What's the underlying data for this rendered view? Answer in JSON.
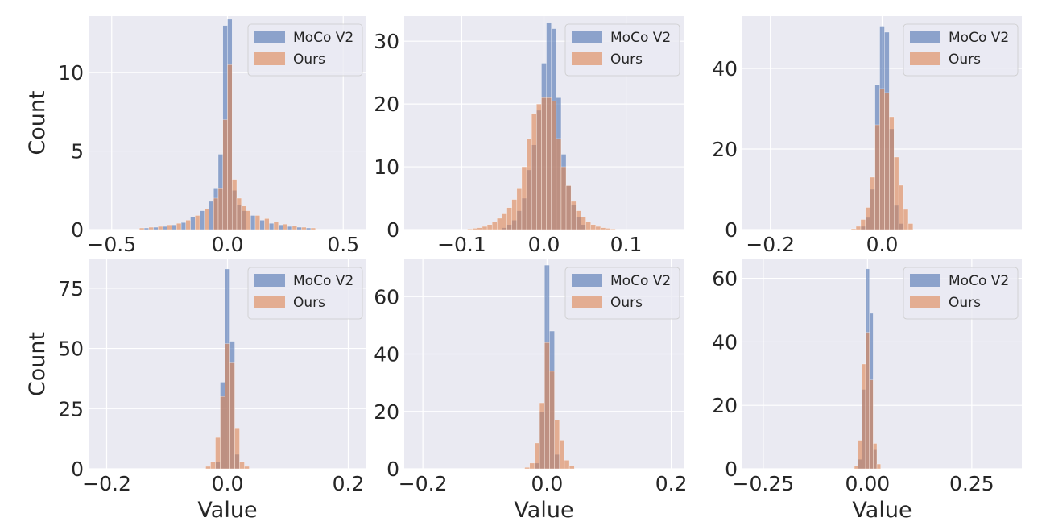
{
  "figure": {
    "xlabel": "Value",
    "ylabel": "Count",
    "series_names": [
      "MoCo V2",
      "Ours"
    ],
    "colors": {
      "moco": "#4c72b0",
      "ours": "#dd8452",
      "panel_bg": "#eaeaf2",
      "grid": "#ffffff",
      "text": "#262626"
    }
  },
  "chart_data": [
    {
      "type": "bar",
      "panel": "top-left",
      "xlim": [
        -0.6,
        0.6
      ],
      "ylim": [
        0,
        13.6
      ],
      "xticks": [
        -0.5,
        0.0,
        0.5
      ],
      "xtick_labels": [
        "−0.5",
        "0.0",
        "0.5"
      ],
      "yticks": [
        0,
        5,
        10
      ],
      "ytick_labels": [
        "0",
        "5",
        "10"
      ],
      "xlabel": "",
      "ylabel": "Count",
      "legend": "top-right",
      "grid": true,
      "bin_width": 0.02,
      "series": [
        {
          "name": "MoCo V2",
          "x": [
            -0.35,
            -0.31,
            -0.27,
            -0.23,
            -0.19,
            -0.15,
            -0.11,
            -0.07,
            -0.05,
            -0.03,
            -0.01,
            0.01,
            0.03,
            0.05,
            0.07,
            0.11,
            0.15,
            0.19,
            0.23,
            0.27,
            0.31,
            0.35
          ],
          "values": [
            0.1,
            0.15,
            0.2,
            0.3,
            0.45,
            0.8,
            1.2,
            1.8,
            2.6,
            4.8,
            13.0,
            13.4,
            2.5,
            1.6,
            1.2,
            0.9,
            0.6,
            0.4,
            0.3,
            0.2,
            0.15,
            0.1
          ]
        },
        {
          "name": "Ours",
          "x": [
            -0.37,
            -0.33,
            -0.29,
            -0.25,
            -0.21,
            -0.17,
            -0.13,
            -0.09,
            -0.05,
            -0.03,
            -0.01,
            0.01,
            0.03,
            0.05,
            0.07,
            0.09,
            0.13,
            0.17,
            0.21,
            0.25,
            0.29,
            0.33,
            0.37
          ],
          "values": [
            0.1,
            0.15,
            0.2,
            0.3,
            0.4,
            0.6,
            0.9,
            1.3,
            2.0,
            2.6,
            7.0,
            10.5,
            3.2,
            2.0,
            1.5,
            1.2,
            0.9,
            0.7,
            0.5,
            0.35,
            0.25,
            0.15,
            0.1
          ]
        }
      ]
    },
    {
      "type": "bar",
      "panel": "top-middle",
      "xlim": [
        -0.17,
        0.17
      ],
      "ylim": [
        0,
        34
      ],
      "xticks": [
        -0.1,
        0.0,
        0.1
      ],
      "xtick_labels": [
        "−0.1",
        "0.0",
        "0.1"
      ],
      "yticks": [
        0,
        10,
        20,
        30
      ],
      "ytick_labels": [
        "0",
        "10",
        "20",
        "30"
      ],
      "xlabel": "",
      "ylabel": "",
      "legend": "top-right",
      "grid": true,
      "bin_width": 0.006,
      "series": [
        {
          "name": "MoCo V2",
          "x": [
            -0.048,
            -0.042,
            -0.036,
            -0.03,
            -0.024,
            -0.018,
            -0.012,
            -0.006,
            0.0,
            0.006,
            0.012,
            0.018,
            0.024,
            0.03,
            0.036,
            0.042,
            0.048
          ],
          "values": [
            0.3,
            0.8,
            1.5,
            3.0,
            5.0,
            9.5,
            13.5,
            19.0,
            26.5,
            33.0,
            32.0,
            21.0,
            12.0,
            7.0,
            4.0,
            2.0,
            0.8
          ]
        },
        {
          "name": "Ours",
          "x": [
            -0.09,
            -0.084,
            -0.078,
            -0.072,
            -0.066,
            -0.06,
            -0.054,
            -0.048,
            -0.042,
            -0.036,
            -0.03,
            -0.024,
            -0.018,
            -0.012,
            -0.006,
            0.0,
            0.006,
            0.012,
            0.018,
            0.024,
            0.03,
            0.036,
            0.042,
            0.048,
            0.054,
            0.06,
            0.066,
            0.072,
            0.078,
            0.084
          ],
          "values": [
            0.1,
            0.2,
            0.3,
            0.5,
            0.8,
            1.2,
            1.8,
            2.5,
            3.5,
            4.8,
            6.5,
            10.0,
            14.5,
            18.5,
            20.0,
            21.0,
            21.0,
            20.5,
            14.5,
            10.0,
            7.0,
            4.5,
            3.0,
            2.0,
            1.3,
            0.8,
            0.5,
            0.3,
            0.2,
            0.1
          ]
        }
      ]
    },
    {
      "type": "bar",
      "panel": "top-right",
      "xlim": [
        -0.25,
        0.25
      ],
      "ylim": [
        0,
        53
      ],
      "xticks": [
        -0.2,
        0.0
      ],
      "xtick_labels": [
        "−0.2",
        "0.0"
      ],
      "yticks": [
        0,
        20,
        40
      ],
      "ytick_labels": [
        "0",
        "20",
        "40"
      ],
      "xlabel": "",
      "ylabel": "",
      "legend": "top-right",
      "grid": true,
      "bin_width": 0.0085,
      "series": [
        {
          "name": "MoCo V2",
          "x": [
            -0.034,
            -0.0255,
            -0.017,
            -0.0085,
            0.0,
            0.0085,
            0.017,
            0.0255,
            0.034
          ],
          "values": [
            0.8,
            3.0,
            10.0,
            36.0,
            50.5,
            49.0,
            25.0,
            6.0,
            1.5
          ]
        },
        {
          "name": "Ours",
          "x": [
            -0.051,
            -0.0425,
            -0.034,
            -0.0255,
            -0.017,
            -0.0085,
            0.0,
            0.0085,
            0.017,
            0.0255,
            0.034,
            0.0425,
            0.051
          ],
          "values": [
            0.2,
            0.8,
            2.5,
            5.5,
            13.0,
            26.0,
            35.0,
            34.0,
            28.0,
            18.0,
            11.0,
            5.0,
            1.5
          ]
        }
      ]
    },
    {
      "type": "bar",
      "panel": "bottom-left",
      "xlim": [
        -0.23,
        0.23
      ],
      "ylim": [
        0,
        87
      ],
      "xticks": [
        -0.2,
        0.0,
        0.2
      ],
      "xtick_labels": [
        "−0.2",
        "0.0",
        "0.2"
      ],
      "yticks": [
        0,
        25,
        50,
        75
      ],
      "ytick_labels": [
        "0",
        "25",
        "50",
        "75"
      ],
      "xlabel": "Value",
      "ylabel": "Count",
      "legend": "top-right",
      "grid": true,
      "bin_width": 0.008,
      "series": [
        {
          "name": "MoCo V2",
          "x": [
            -0.016,
            -0.008,
            0.0,
            0.008,
            0.016
          ],
          "values": [
            3.0,
            36.0,
            83.0,
            53.0,
            6.0
          ]
        },
        {
          "name": "Ours",
          "x": [
            -0.032,
            -0.024,
            -0.016,
            -0.008,
            0.0,
            0.008,
            0.016,
            0.024,
            0.032
          ],
          "values": [
            1.0,
            3.0,
            13.0,
            30.0,
            52.0,
            44.0,
            17.0,
            3.0,
            1.0
          ]
        }
      ]
    },
    {
      "type": "bar",
      "panel": "bottom-middle",
      "xlim": [
        -0.23,
        0.22
      ],
      "ylim": [
        0,
        73
      ],
      "xticks": [
        -0.2,
        0.0,
        0.2
      ],
      "xtick_labels": [
        "−0.2",
        "0.0",
        "0.2"
      ],
      "yticks": [
        0,
        20,
        40,
        60
      ],
      "ytick_labels": [
        "0",
        "20",
        "40",
        "60"
      ],
      "xlabel": "Value",
      "ylabel": "",
      "legend": "top-right",
      "grid": true,
      "bin_width": 0.008,
      "series": [
        {
          "name": "MoCo V2",
          "x": [
            -0.016,
            -0.008,
            0.0,
            0.008,
            0.016
          ],
          "values": [
            2.0,
            20.0,
            71.0,
            48.0,
            5.0
          ]
        },
        {
          "name": "Ours",
          "x": [
            -0.032,
            -0.024,
            -0.016,
            -0.008,
            0.0,
            0.008,
            0.016,
            0.024,
            0.032,
            0.04
          ],
          "values": [
            0.5,
            2.0,
            9.0,
            23.0,
            44.0,
            34.0,
            17.0,
            10.0,
            3.0,
            1.0
          ]
        }
      ]
    },
    {
      "type": "bar",
      "panel": "bottom-right",
      "xlim": [
        -0.3,
        0.37
      ],
      "ylim": [
        0,
        66
      ],
      "xticks": [
        -0.25,
        0.0,
        0.25
      ],
      "xtick_labels": [
        "−0.25",
        "0.00",
        "0.25"
      ],
      "yticks": [
        0,
        20,
        40,
        60
      ],
      "ytick_labels": [
        "0",
        "20",
        "40",
        "60"
      ],
      "xlabel": "Value",
      "ylabel": "",
      "legend": "top-right",
      "grid": true,
      "bin_width": 0.009,
      "series": [
        {
          "name": "MoCo V2",
          "x": [
            -0.018,
            -0.009,
            0.0,
            0.009,
            0.018
          ],
          "values": [
            3.0,
            25.0,
            63.0,
            49.0,
            6.0
          ]
        },
        {
          "name": "Ours",
          "x": [
            -0.027,
            -0.018,
            -0.009,
            0.0,
            0.009,
            0.018,
            0.027
          ],
          "values": [
            1.0,
            9.0,
            33.0,
            43.0,
            28.0,
            8.0,
            1.5
          ]
        }
      ]
    }
  ]
}
